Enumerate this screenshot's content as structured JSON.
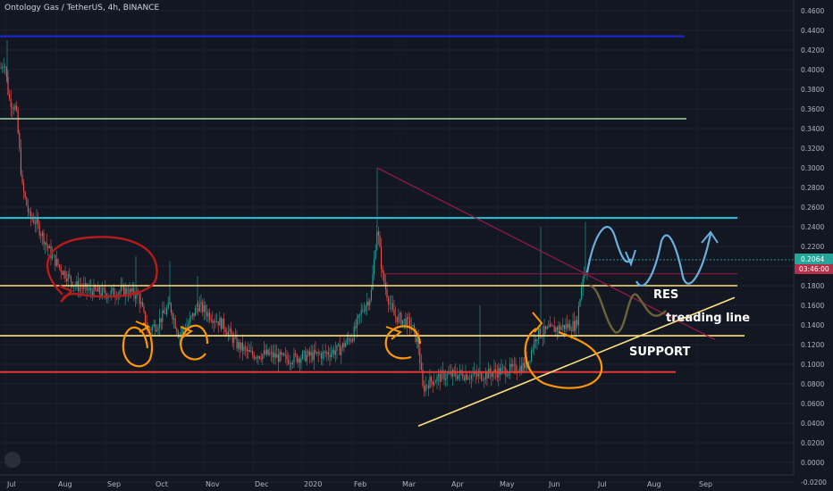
{
  "header": {
    "title": "Ontology Gas / TetherUS, 4h, BINANCE"
  },
  "price_axis": {
    "ticks": [
      "0.4600",
      "0.4400",
      "0.4200",
      "0.4000",
      "0.3800",
      "0.3600",
      "0.3400",
      "0.3200",
      "0.3000",
      "0.2800",
      "0.2600",
      "0.2400",
      "0.2200",
      "0.2000",
      "0.1800",
      "0.1600",
      "0.1400",
      "0.1200",
      "0.1000",
      "0.0800",
      "0.0600",
      "0.0400",
      "0.0200",
      "0.0000",
      "-0.0200"
    ],
    "last_price": "0.2064",
    "countdown": "03:46:00",
    "last_price_color": "#26a69a"
  },
  "time_axis": {
    "labels": [
      "Jul",
      "Aug",
      "Sep",
      "Oct",
      "Nov",
      "Dec",
      "2020",
      "Feb",
      "Mar",
      "Apr",
      "May",
      "Jun",
      "Jul",
      "Aug",
      "Sep"
    ]
  },
  "annotations": {
    "res": "RES",
    "treading": "treading line",
    "support": "SUPPORT"
  },
  "colors": {
    "background": "#131722",
    "candle_up": "#26a69a",
    "candle_down": "#ef5350",
    "blue_line": "#1b25c8",
    "green_line": "#a5d6a7",
    "cyan_line": "#26c6da",
    "yellow_line": "#ffe082",
    "red_line": "#e53935",
    "orange_marks": "#ff9800",
    "sky_marks": "#6ab0de"
  },
  "chart_data": {
    "type": "candlestick",
    "title": "Ontology Gas / TetherUS, 4h, BINANCE",
    "ylim": [
      -0.02,
      0.46
    ],
    "x": [
      "2019-07",
      "2019-08",
      "2019-09",
      "2019-10",
      "2019-11",
      "2019-12",
      "2020-01",
      "2020-02",
      "2020-03",
      "2020-04",
      "2020-05",
      "2020-06",
      "2020-07"
    ],
    "close_approx": [
      0.36,
      0.24,
      0.175,
      0.14,
      0.16,
      0.115,
      0.105,
      0.2,
      0.13,
      0.085,
      0.09,
      0.13,
      0.2064
    ],
    "horizontal_levels": [
      0.434,
      0.35,
      0.249,
      0.18,
      0.129,
      0.092
    ],
    "last_price": 0.2064
  }
}
